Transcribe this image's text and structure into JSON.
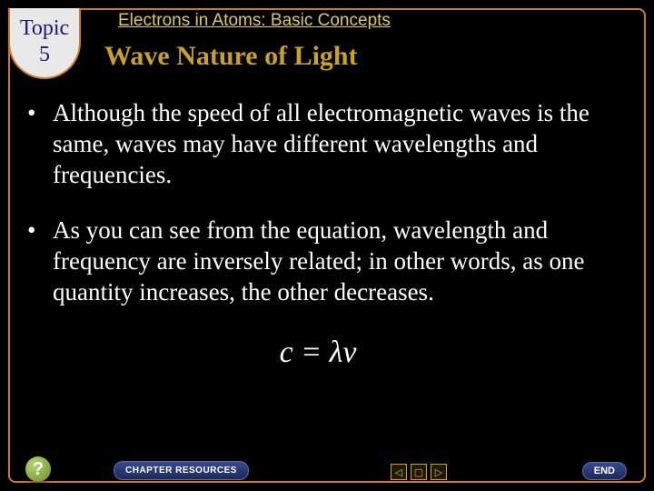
{
  "topic": {
    "label": "Topic",
    "number": "5"
  },
  "chapter_title": "Electrons in Atoms: Basic Concepts",
  "slide_title": "Wave Nature of Light",
  "bullets": [
    "Although the speed of all electromagnetic waves is the same, waves may have different wavelengths and frequencies.",
    "As you can see from the equation, wavelength and frequency are inversely related; in other words, as one quantity increases, the other decreases."
  ],
  "equation": "c = λν",
  "nav": {
    "help": "?",
    "resources": "CHAPTER RESOURCES",
    "prev": "◁",
    "stop": "▢",
    "next": "▷",
    "end": "END"
  },
  "colors": {
    "background": "#000000",
    "frame_border": "#c97a2a",
    "title_gold": "#c8a030",
    "chapter_gold": "#d8c870",
    "topic_navy": "#1a1a6a",
    "text": "#ffffff"
  }
}
